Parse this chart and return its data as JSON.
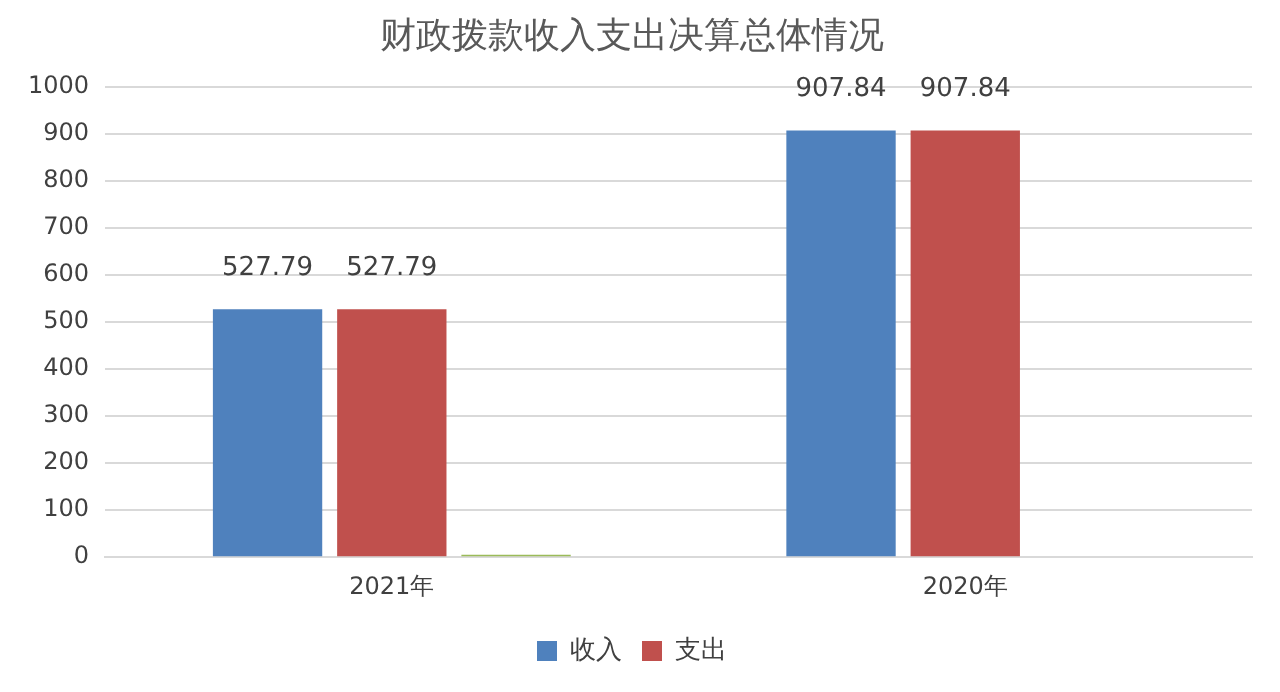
{
  "chart_data": {
    "type": "bar",
    "title": "财政拨款收入支出决算总体情况",
    "categories": [
      "2021年",
      "2020年"
    ],
    "series": [
      {
        "name": "收入",
        "color": "#4f81bd",
        "values": [
          527.79,
          907.84
        ],
        "value_labels": [
          "527.79",
          "907.84"
        ]
      },
      {
        "name": "支出",
        "color": "#c0504d",
        "values": [
          527.79,
          907.84
        ],
        "value_labels": [
          "527.79",
          "907.84"
        ]
      },
      {
        "color": "#9bbb59",
        "values": [
          5,
          null
        ],
        "value_labels": [
          null,
          null
        ]
      }
    ],
    "ylim": [
      0,
      1000
    ],
    "yticks": [
      0,
      100,
      200,
      300,
      400,
      500,
      600,
      700,
      800,
      900,
      1000
    ],
    "grid": "y",
    "legend": "bottom"
  }
}
